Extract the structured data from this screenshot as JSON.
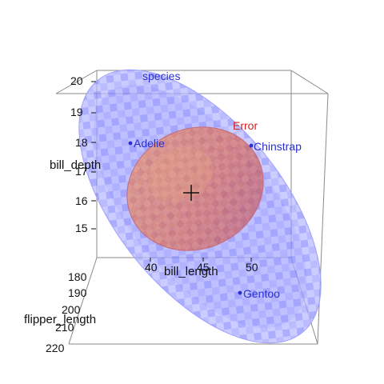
{
  "plot": {
    "axes": {
      "x_label": "bill_length",
      "y_label": "bill_depth",
      "z_label": "flipper_length",
      "x_ticks": [
        "40",
        "45",
        "50"
      ],
      "y_ticks": [
        "20",
        "19",
        "18",
        "17",
        "16",
        "15"
      ],
      "z_ticks": [
        "180",
        "190",
        "200",
        "210",
        "220"
      ]
    },
    "ellipses": {
      "species_label": "species",
      "error_label": "Error",
      "species_color": "#6b6dff",
      "error_color": "#e0645a"
    },
    "groups": [
      {
        "label": "Adelie"
      },
      {
        "label": "Chinstrap"
      },
      {
        "label": "Gentoo"
      }
    ],
    "center_marker": "plus",
    "point_color": "#2b2fd0"
  }
}
